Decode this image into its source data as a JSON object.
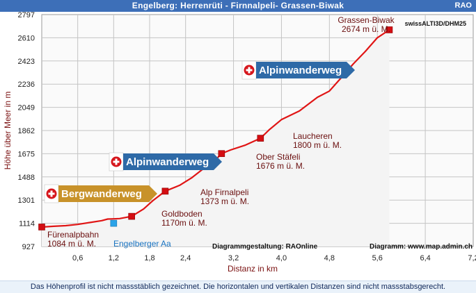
{
  "header": {
    "title": "Engelberg: Herrenrüti - Firnnalpeli- Grassen-Biwak",
    "brand": "RAO",
    "background_color": "#3d6fb8"
  },
  "footer": {
    "note": "Das Höhenprofil ist nicht massstäblich gezeichnet. Die horizontalen und vertikalen Distanzen sind nicht massstabsgerecht."
  },
  "chart_data": {
    "type": "line",
    "title": "Engelberg: Herrenrüti - Firnnalpeli- Grassen-Biwak",
    "xlabel": "Distanz in km",
    "ylabel": "Höhe über Meer in m",
    "xlim": [
      0,
      7.2
    ],
    "ylim": [
      927,
      2797
    ],
    "xticks": [
      "0,6",
      "1,2",
      "1,8",
      "2,4",
      "3,2",
      "4,0",
      "4,8",
      "5,6",
      "6,4",
      "7,2"
    ],
    "yticks": [
      "927",
      "1114",
      "1301",
      "1488",
      "1675",
      "1862",
      "2049",
      "2236",
      "2423",
      "2610",
      "2797"
    ],
    "line_color": "#e01515",
    "fill_color": "#f4f4f4",
    "grid": true,
    "profile": {
      "x": [
        0,
        0.2,
        0.4,
        0.6,
        0.8,
        1.0,
        1.1,
        1.2,
        1.3,
        1.5,
        1.7,
        1.85,
        2.06,
        2.3,
        2.5,
        2.7,
        2.9,
        3.0,
        3.15,
        3.4,
        3.65,
        3.8,
        4.0,
        4.3,
        4.6,
        4.8,
        5.0,
        5.2,
        5.4,
        5.6,
        5.8
      ],
      "y": [
        1084,
        1090,
        1095,
        1105,
        1120,
        1135,
        1148,
        1150,
        1152,
        1170,
        1230,
        1295,
        1373,
        1420,
        1480,
        1555,
        1625,
        1676,
        1705,
        1745,
        1800,
        1870,
        1950,
        2020,
        2130,
        2180,
        2290,
        2400,
        2500,
        2610,
        2674
      ]
    },
    "waypoints": [
      {
        "name": "Fürenalpbahn",
        "elev": "1084 m ü. M.",
        "x": 0,
        "y": 1084
      },
      {
        "name": "Goldboden",
        "elev": "1170m ü. M.",
        "x": 1.5,
        "y": 1170
      },
      {
        "name": "Alp Firnalpeli",
        "elev": "1373 m ü. M.",
        "x": 2.06,
        "y": 1373
      },
      {
        "name": "Ober Stäfeli",
        "elev": "1676 m ü. M.",
        "x": 3.0,
        "y": 1676
      },
      {
        "name": "Laucheren",
        "elev": "1800 m ü. M.",
        "x": 3.65,
        "y": 1800
      },
      {
        "name": "Grassen-Biwak",
        "elev": "2674 m ü. M.",
        "x": 5.8,
        "y": 2674
      }
    ],
    "location_marker": {
      "name": "Engelberger Aa",
      "x": 1.2,
      "y": 1114
    },
    "trail_signs": [
      {
        "label": "Bergwanderweg",
        "color": "#c8922a"
      },
      {
        "label": "Alpinwanderweg",
        "color": "#2e6aa7"
      },
      {
        "label": "Alpinwanderweg",
        "color": "#2e6aa7"
      }
    ],
    "annotations": {
      "source": "swissALTI3D/DHM25",
      "credit_design": "Diagrammgestaltung: RAOnline",
      "credit_map": "Diagramm: www.map.admin.ch"
    }
  }
}
